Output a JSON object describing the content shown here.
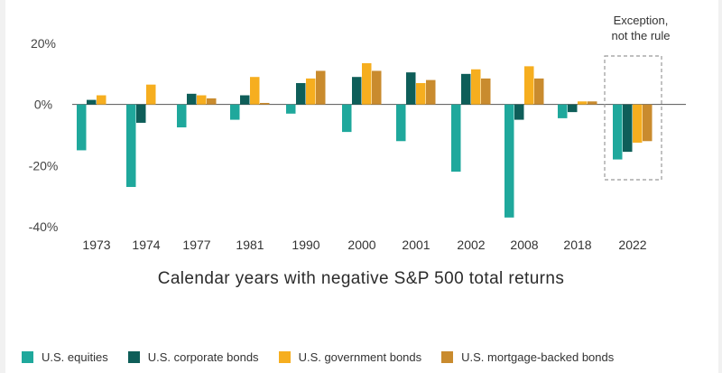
{
  "chart_data": {
    "type": "bar",
    "title": "",
    "xlabel": "Calendar years with negative S&P 500 total returns",
    "ylabel": "",
    "ylim": [
      -40,
      20
    ],
    "yticks": [
      20,
      0,
      -20,
      -40
    ],
    "ytick_labels": [
      "20%",
      "0%",
      "-20%",
      "-40%"
    ],
    "categories": [
      "1973",
      "1974",
      "1977",
      "1981",
      "1990",
      "2000",
      "2001",
      "2002",
      "2008",
      "2018",
      "2022"
    ],
    "series": [
      {
        "name": "U.S. equities",
        "color": "#1fa89c",
        "values": [
          -15,
          -27,
          -7.5,
          -5,
          -3,
          -9,
          -12,
          -22,
          -37,
          -4.5,
          -18
        ]
      },
      {
        "name": "U.S. corporate bonds",
        "color": "#0e5e59",
        "values": [
          1.5,
          -6,
          3.5,
          3,
          7,
          9,
          10.5,
          10,
          -5,
          -2.5,
          -15.5
        ]
      },
      {
        "name": "U.S. government bonds",
        "color": "#f6ae1f",
        "values": [
          3,
          6.5,
          3,
          9,
          8.5,
          13.5,
          7,
          11.5,
          12.5,
          1,
          -12.5
        ]
      },
      {
        "name": "U.S. mortgage-backed bonds",
        "color": "#c98b2e",
        "values": [
          0,
          0,
          2,
          0.5,
          11,
          11,
          8,
          8.5,
          8.5,
          1,
          -12
        ]
      }
    ],
    "legend_position": "bottom",
    "grid": false,
    "annotation": {
      "text_lines": [
        "Exception,",
        "not the rule"
      ],
      "category": "2022"
    }
  }
}
